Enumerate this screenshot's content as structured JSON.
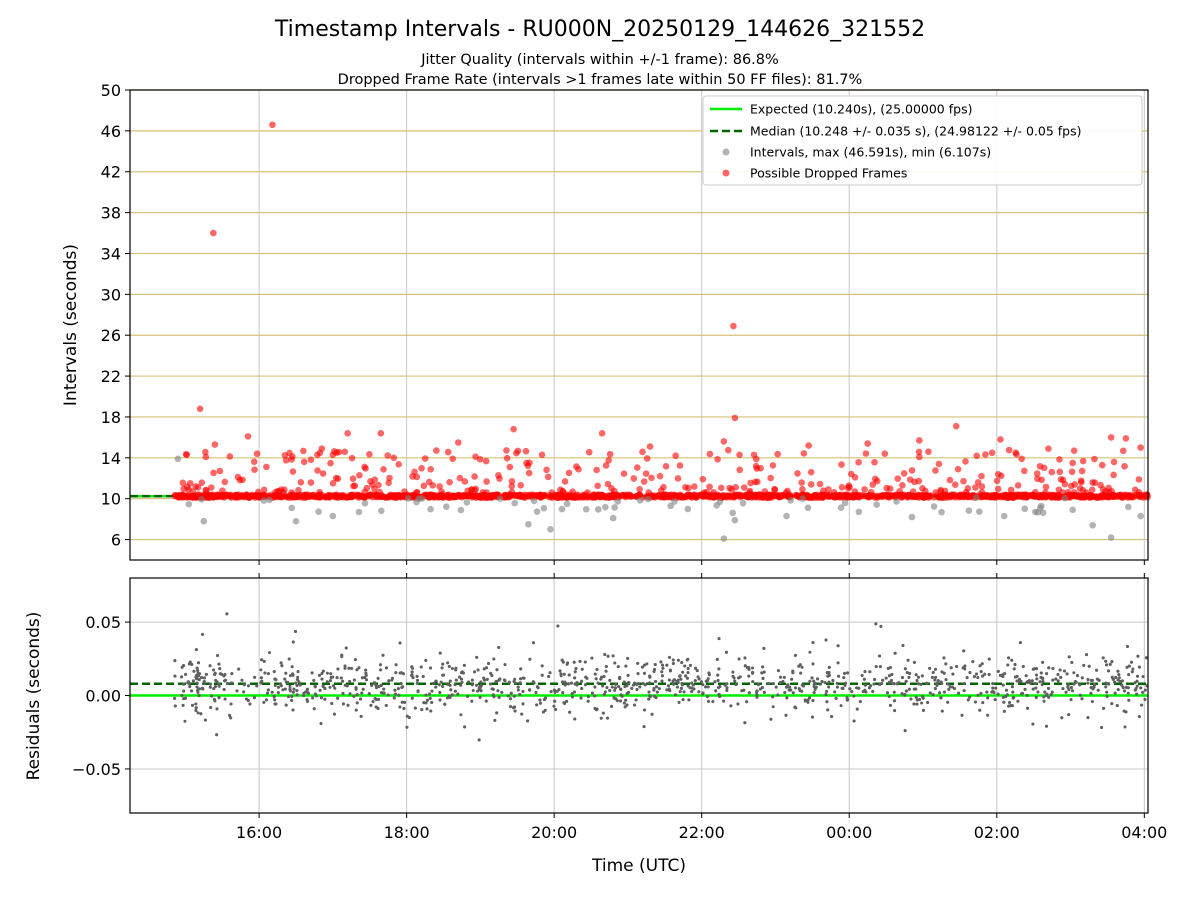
{
  "chart_data": [
    {
      "type": "scatter",
      "title": "Timestamp Intervals - RU000N_20250129_144626_321552",
      "subtitle_lines": [
        "Jitter Quality (intervals within +/-1 frame): 86.8%",
        "Dropped Frame Rate (intervals >1 frames late within 50 FF files): 81.7%"
      ],
      "ylabel": "Intervals (seconds)",
      "ylim": [
        4,
        50
      ],
      "yticks": [
        6,
        10,
        14,
        18,
        22,
        26,
        30,
        34,
        38,
        42,
        46,
        50
      ],
      "xlim_hours": [
        14.25,
        28.05
      ],
      "xticks": [
        16,
        18,
        20,
        22,
        24,
        26,
        28
      ],
      "xtick_labels": [
        "16:00",
        "18:00",
        "20:00",
        "22:00",
        "00:00",
        "02:00",
        "04:00"
      ],
      "grid": "on",
      "legend_position": "top-right",
      "legend": [
        "Expected (10.240s), (25.00000 fps)",
        "Median (10.248 +/- 0.035 s), (24.98122 +/- 0.05 fps)",
        "Intervals, max (46.591s), min (6.107s)",
        "Possible Dropped Frames"
      ],
      "expected_interval": 10.24,
      "median_interval": 10.248,
      "data_start_hour": 14.85,
      "data_end_hour": 28.05,
      "intervals_max": 46.591,
      "intervals_min": 6.107,
      "baseline_band": [
        10.1,
        10.4
      ],
      "dropped_outliers": [
        {
          "x": 15.2,
          "y": 18.8
        },
        {
          "x": 15.38,
          "y": 36.0
        },
        {
          "x": 15.4,
          "y": 15.3
        },
        {
          "x": 15.85,
          "y": 16.1
        },
        {
          "x": 16.18,
          "y": 46.6
        },
        {
          "x": 16.85,
          "y": 14.9
        },
        {
          "x": 17.05,
          "y": 14.5
        },
        {
          "x": 17.2,
          "y": 16.4
        },
        {
          "x": 17.65,
          "y": 16.4
        },
        {
          "x": 18.7,
          "y": 15.5
        },
        {
          "x": 19.45,
          "y": 16.8
        },
        {
          "x": 20.65,
          "y": 16.4
        },
        {
          "x": 21.3,
          "y": 15.1
        },
        {
          "x": 22.3,
          "y": 15.6
        },
        {
          "x": 22.43,
          "y": 26.9
        },
        {
          "x": 22.45,
          "y": 17.9
        },
        {
          "x": 23.45,
          "y": 15.2
        },
        {
          "x": 24.25,
          "y": 15.4
        },
        {
          "x": 24.95,
          "y": 15.7
        },
        {
          "x": 25.45,
          "y": 17.1
        },
        {
          "x": 26.05,
          "y": 15.8
        },
        {
          "x": 26.7,
          "y": 14.9
        },
        {
          "x": 27.55,
          "y": 16.0
        },
        {
          "x": 27.75,
          "y": 15.9
        },
        {
          "x": 27.95,
          "y": 15.0
        }
      ],
      "gray_outliers": [
        {
          "x": 14.9,
          "y": 13.9
        },
        {
          "x": 15.25,
          "y": 7.8
        },
        {
          "x": 16.5,
          "y": 7.8
        },
        {
          "x": 17.0,
          "y": 8.3
        },
        {
          "x": 19.65,
          "y": 7.5
        },
        {
          "x": 19.95,
          "y": 7.0
        },
        {
          "x": 20.8,
          "y": 8.1
        },
        {
          "x": 22.3,
          "y": 6.1
        },
        {
          "x": 22.45,
          "y": 7.9
        },
        {
          "x": 23.15,
          "y": 8.3
        },
        {
          "x": 24.85,
          "y": 8.2
        },
        {
          "x": 26.1,
          "y": 8.3
        },
        {
          "x": 27.3,
          "y": 7.4
        },
        {
          "x": 27.55,
          "y": 6.2
        },
        {
          "x": 27.95,
          "y": 8.3
        }
      ]
    },
    {
      "type": "scatter",
      "ylabel": "Residuals (seconds)",
      "xlabel": "Time (UTC)",
      "ylim": [
        -0.08,
        0.08
      ],
      "yticks": [
        0.05,
        0.0,
        -0.05
      ],
      "ytick_labels": [
        "0.05",
        "0.00",
        "−0.05"
      ],
      "expected_residual": 0.0,
      "median_residual": 0.008,
      "residual_spread": 0.035,
      "grid": "on"
    }
  ],
  "colors": {
    "expected_line": "#00ee00",
    "median_line": "#006400",
    "intervals": "#808080",
    "dropped": "#ff0000",
    "hgrid_top": "#d8c07a",
    "grid": "#c8c8c8",
    "residuals": "#606060"
  }
}
